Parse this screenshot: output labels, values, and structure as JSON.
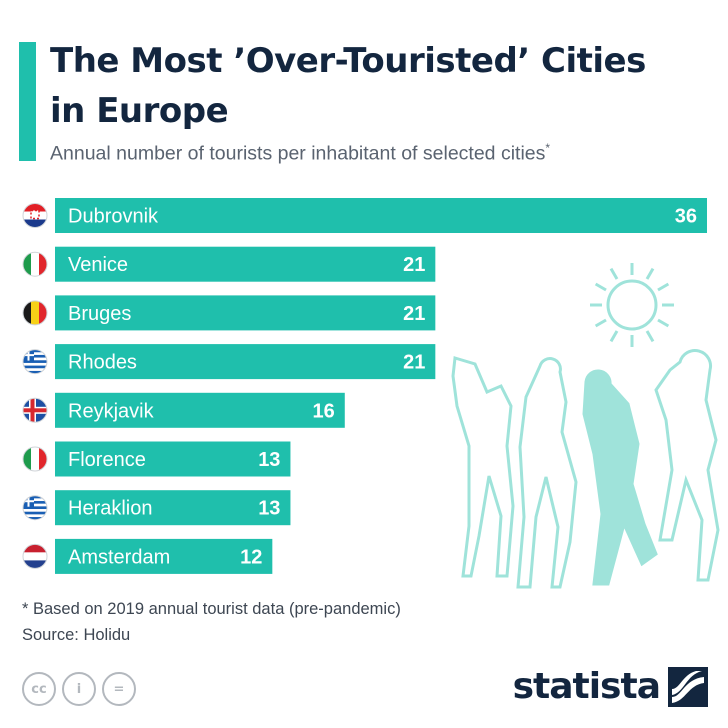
{
  "header": {
    "title": "The Most ’Over-Touristed’ Cities in Europe",
    "subtitle": "Annual number of tourists per inhabitant of selected cities",
    "subtitle_marker": "*"
  },
  "chart_data": {
    "type": "bar",
    "orientation": "horizontal",
    "title": "The Most ’Over-Touristed’ Cities in Europe",
    "subtitle": "Annual number of tourists per inhabitant of selected cities*",
    "categories": [
      "Dubrovnik",
      "Venice",
      "Bruges",
      "Rhodes",
      "Reykjavik",
      "Florence",
      "Heraklion",
      "Amsterdam"
    ],
    "values": [
      36,
      21,
      21,
      21,
      16,
      13,
      13,
      12
    ],
    "flags": [
      "croatia-flag",
      "italy-flag",
      "belgium-flag",
      "greece-flag",
      "iceland-flag",
      "italy-flag",
      "greece-flag",
      "netherlands-flag"
    ],
    "xlim": [
      0,
      36
    ],
    "grid": false,
    "legend": "none",
    "bar_color": "#1fbfac",
    "label_color": "#13263f"
  },
  "footer": {
    "footnote": "* Based on 2019 annual tourist data (pre-pandemic)",
    "source": "Source: Holidu",
    "brand": "statista",
    "license_icons": [
      "cc-icon",
      "attribution-icon",
      "no-derivatives-icon"
    ],
    "license_glyphs": [
      "cc",
      "i",
      "="
    ]
  },
  "colors": {
    "accent": "#1fbfac",
    "title": "#13263f",
    "illustration": "#9fe3da"
  }
}
